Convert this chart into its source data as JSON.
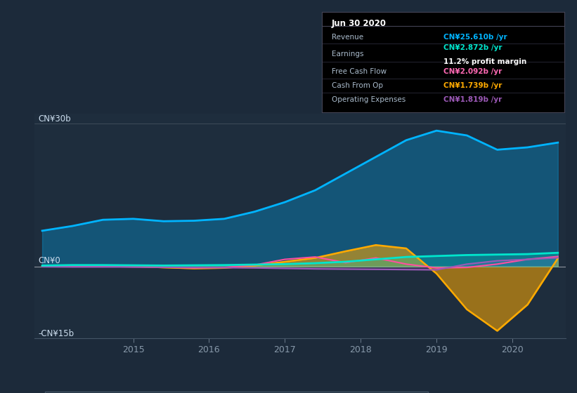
{
  "bg_color": "#1c2a3a",
  "plot_bg_color": "#1e2d3d",
  "years": [
    2013.8,
    2014.2,
    2014.6,
    2015.0,
    2015.4,
    2015.8,
    2016.2,
    2016.6,
    2017.0,
    2017.4,
    2017.8,
    2018.2,
    2018.6,
    2019.0,
    2019.4,
    2019.8,
    2020.2,
    2020.6
  ],
  "revenue": [
    7.5,
    8.5,
    9.8,
    10.0,
    9.5,
    9.6,
    10.0,
    11.5,
    13.5,
    16.0,
    19.5,
    23.0,
    26.5,
    28.5,
    27.5,
    24.5,
    25.0,
    26.0
  ],
  "earnings": [
    0.2,
    0.3,
    0.3,
    0.25,
    0.2,
    0.25,
    0.3,
    0.4,
    0.5,
    0.7,
    1.0,
    1.5,
    2.0,
    2.2,
    2.4,
    2.5,
    2.6,
    2.872
  ],
  "free_cash_flow": [
    0.0,
    0.1,
    0.05,
    -0.1,
    -0.15,
    -0.3,
    -0.2,
    0.3,
    1.5,
    2.0,
    0.8,
    1.8,
    0.5,
    -0.3,
    -0.2,
    0.5,
    1.5,
    2.092
  ],
  "cash_from_op": [
    0.0,
    0.1,
    0.1,
    0.05,
    -0.2,
    -0.4,
    -0.3,
    0.2,
    1.0,
    1.8,
    3.2,
    4.5,
    3.8,
    -1.5,
    -9.0,
    -13.5,
    -8.0,
    1.739
  ],
  "operating_expenses": [
    -0.05,
    -0.1,
    -0.1,
    -0.1,
    -0.15,
    -0.2,
    -0.25,
    -0.3,
    -0.4,
    -0.5,
    -0.55,
    -0.6,
    -0.65,
    -0.7,
    0.5,
    1.2,
    1.5,
    1.819
  ],
  "revenue_color": "#00b4ff",
  "earnings_color": "#00e5cc",
  "free_cash_flow_color": "#ff4fa0",
  "cash_from_op_color": "#ffaa00",
  "operating_expenses_color": "#9b59b6",
  "info_revenue_color": "#00b4ff",
  "info_earnings_color": "#00e5cc",
  "info_fcf_color": "#ff69b4",
  "info_cfop_color": "#ffaa00",
  "info_opex_color": "#9b59b6",
  "ylabel_top": "CN¥30b",
  "ylabel_zero": "CN¥0",
  "ylabel_bottom": "-CN¥15b",
  "ylim": [
    -15,
    32
  ],
  "xticks": [
    2015,
    2016,
    2017,
    2018,
    2019,
    2020
  ]
}
